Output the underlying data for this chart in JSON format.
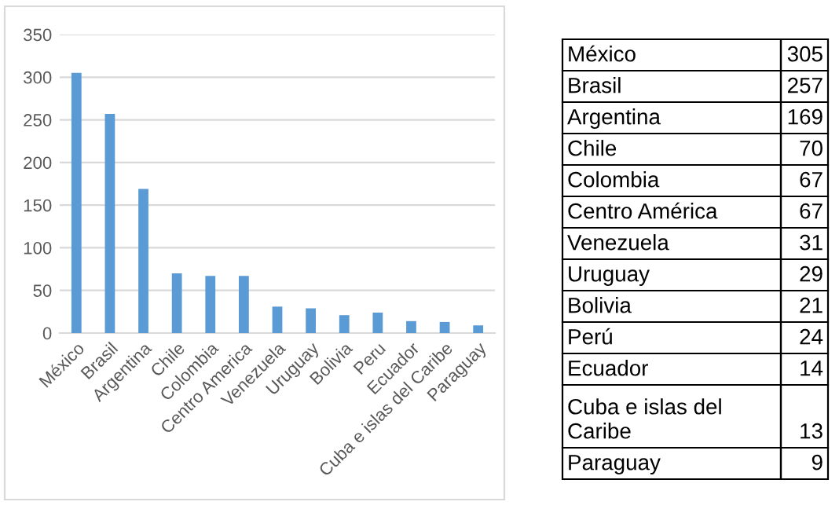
{
  "chart_data": [
    {
      "type": "bar",
      "categories": [
        "México",
        "Brasil",
        "Argentina",
        "Chile",
        "Colombia",
        "Centro America",
        "Venezuela",
        "Uruguay",
        "Bolivia",
        "Peru",
        "Ecuador",
        "Cuba e islas del Caribe",
        "Paraguay"
      ],
      "values": [
        305,
        257,
        169,
        70,
        67,
        67,
        31,
        29,
        21,
        24,
        14,
        13,
        9
      ],
      "color": "#5b9bd5",
      "ylim": [
        0,
        350
      ],
      "yticks": [
        0,
        50,
        100,
        150,
        200,
        250,
        300,
        350
      ],
      "grid": "y"
    },
    {
      "type": "other",
      "annotations": [
        "México",
        "305",
        "Brasil",
        "257",
        "Argentina",
        "169",
        "Chile",
        "70",
        "Colombia",
        "67",
        "Centro América",
        "67",
        "Venezuela",
        "31",
        "Uruguay",
        "29",
        "Bolivia",
        "21",
        "Perú",
        "24",
        "Ecuador",
        "14",
        "Cuba e islas del\nCaribe",
        "13",
        "Paraguay",
        "9"
      ]
    }
  ]
}
